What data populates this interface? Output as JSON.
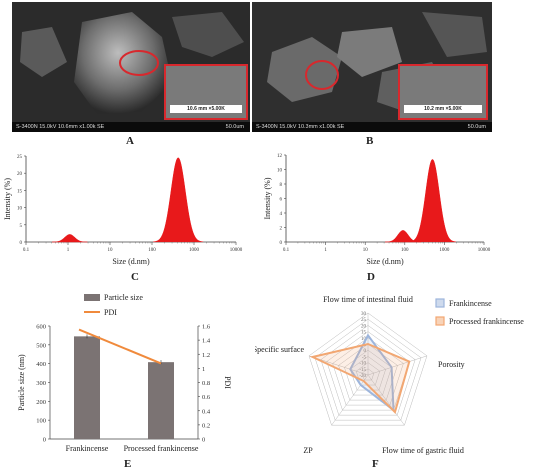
{
  "sem": {
    "A": {
      "bar_left": "S-3400N 15.0kV 10.6mm x1.00k SE",
      "bar_right": "50.0um",
      "inset_label": "10.6 mm ×5.00K"
    },
    "B": {
      "bar_left": "S-3400N 15.0kV 10.3mm x1.00k SE",
      "bar_right": "50.0um",
      "inset_label": "10.2 mm ×5.00K"
    }
  },
  "panel_labels": {
    "A": "A",
    "B": "B",
    "C": "C",
    "D": "D",
    "E": "E",
    "F": "F"
  },
  "colors": {
    "dls_fill": "#e8191b",
    "bar": "#7b7373",
    "pdi_line": "#f08a3c",
    "frank": "#9db5dc",
    "processed": "#f2a772"
  },
  "chart_data": [
    {
      "id": "C",
      "type": "area",
      "xlabel": "Size (d.nm)",
      "ylabel": "Intensity (%)",
      "x_scale": "log",
      "xlim": [
        0.1,
        10000
      ],
      "ylim": [
        0,
        25
      ],
      "x_ticks": [
        "0.1",
        "1",
        "10",
        "100",
        "1000",
        "10000"
      ],
      "y_ticks": [
        "0",
        "5",
        "10",
        "15",
        "20",
        "25"
      ],
      "peaks": [
        {
          "center": 1.1,
          "height": 2.2
        },
        {
          "center": 420,
          "height": 24.5
        }
      ]
    },
    {
      "id": "D",
      "type": "area",
      "xlabel": "Size (d.nm)",
      "ylabel": "Intensity (%)",
      "x_scale": "log",
      "xlim": [
        0.1,
        10000
      ],
      "ylim": [
        0,
        12
      ],
      "x_ticks": [
        "0.1",
        "1",
        "10",
        "100",
        "1000",
        "10000"
      ],
      "y_ticks": [
        "0",
        "2",
        "4",
        "6",
        "8",
        "10",
        "12"
      ],
      "peaks": [
        {
          "center": 90,
          "height": 1.6
        },
        {
          "center": 500,
          "height": 11.4
        }
      ]
    },
    {
      "id": "E",
      "type": "bar",
      "categories": [
        "Frankincense",
        "Processed frankincense"
      ],
      "series": [
        {
          "name": "Particle size",
          "values": [
            545,
            408
          ]
        },
        {
          "name": "PDI",
          "values": [
            1.55,
            1.07
          ]
        }
      ],
      "ylabel": "Particle size (nm)",
      "y2label": "PDI",
      "ylim": [
        0,
        600
      ],
      "y2lim": [
        0,
        1.6
      ],
      "y_ticks": [
        "0",
        "100",
        "200",
        "300",
        "400",
        "500",
        "600"
      ],
      "y2_ticks": [
        "0",
        "0.2",
        "0.4",
        "0.6",
        "0.8",
        "1",
        "1.2",
        "1.4",
        "1.6"
      ],
      "legend": "top"
    },
    {
      "id": "F",
      "type": "radar",
      "axes": [
        "Flow time of intestinal fluid",
        "Porosity",
        "Flow time of gastric fluid",
        "ZP",
        "Specific surface"
      ],
      "rlim": [
        -20,
        30
      ],
      "r_ticks": [
        "-20",
        "-15",
        "-10",
        "-5",
        "0",
        "5",
        "10",
        "15",
        "20",
        "25",
        "30"
      ],
      "series": [
        {
          "name": "Frankincense",
          "values": [
            12,
            0,
            15,
            -10,
            -5
          ]
        },
        {
          "name": "Processed frankincense",
          "values": [
            5,
            15,
            17,
            -14,
            27
          ]
        }
      ],
      "legend": "top-right"
    }
  ]
}
